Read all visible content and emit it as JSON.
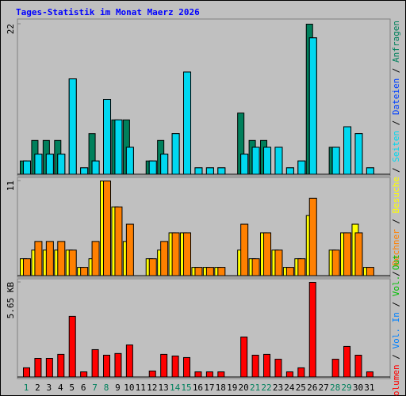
{
  "title": "Tages-Statistik im Monat Maerz 2026",
  "legend_separator": " / ",
  "chart_data": [
    {
      "type": "bar",
      "ylim": [
        0,
        22
      ],
      "yticks": [
        22
      ],
      "series": [
        {
          "name": "Anfragen",
          "color": "#00805c",
          "values": [
            2,
            5,
            5,
            5,
            0,
            0,
            6,
            0,
            8,
            8,
            0,
            2,
            5,
            0,
            0,
            0,
            0,
            0,
            0,
            9,
            5,
            5,
            0,
            0,
            0,
            22,
            0,
            4,
            0,
            0,
            0
          ]
        },
        {
          "name": "Dateien",
          "color": "#0040ff",
          "values": [
            2,
            3,
            3,
            3,
            14,
            1,
            2,
            11,
            8,
            4,
            0,
            2,
            3,
            6,
            15,
            1,
            1,
            1,
            0,
            3,
            4,
            4,
            4,
            1,
            2,
            20,
            0,
            4,
            7,
            6,
            1
          ]
        },
        {
          "name": "Seiten",
          "color": "#00d8f0",
          "values": [
            2,
            3,
            3,
            3,
            14,
            1,
            2,
            11,
            8,
            4,
            0,
            2,
            3,
            6,
            15,
            1,
            1,
            1,
            0,
            3,
            4,
            4,
            4,
            1,
            2,
            20,
            0,
            4,
            7,
            6,
            1
          ]
        }
      ]
    },
    {
      "type": "bar",
      "ylim": [
        0,
        11
      ],
      "yticks": [
        11
      ],
      "series": [
        {
          "name": "Besuche",
          "color": "#ffff00",
          "values": [
            2,
            3,
            3,
            3,
            3,
            1,
            2,
            11,
            8,
            4,
            0,
            2,
            3,
            5,
            5,
            1,
            1,
            1,
            0,
            3,
            2,
            5,
            3,
            1,
            2,
            7,
            0,
            3,
            5,
            6,
            1
          ]
        },
        {
          "name": "Rechner",
          "color": "#ff8000",
          "values": [
            2,
            4,
            4,
            4,
            3,
            1,
            4,
            11,
            8,
            6,
            0,
            2,
            4,
            5,
            5,
            1,
            1,
            1,
            0,
            6,
            2,
            5,
            3,
            1,
            2,
            9,
            0,
            3,
            5,
            5,
            1
          ]
        }
      ]
    },
    {
      "type": "bar",
      "ylim": [
        0,
        5.65
      ],
      "yticks": [
        {
          "value": 5.65,
          "label": "5.65 KB"
        }
      ],
      "categories": [
        "1",
        "2",
        "3",
        "4",
        "5",
        "6",
        "7",
        "8",
        "9",
        "10",
        "11",
        "12",
        "13",
        "14",
        "15",
        "16",
        "17",
        "18",
        "19",
        "20",
        "21",
        "22",
        "23",
        "24",
        "25",
        "26",
        "27",
        "28",
        "29",
        "30",
        "31"
      ],
      "category_colors": [
        "#00805c",
        "#000000",
        "#000000",
        "#000000",
        "#000000",
        "#000000",
        "#00805c",
        "#00805c",
        "#000000",
        "#000000",
        "#000000",
        "#000000",
        "#000000",
        "#00805c",
        "#00805c",
        "#000000",
        "#000000",
        "#000000",
        "#000000",
        "#000000",
        "#00805c",
        "#00805c",
        "#000000",
        "#000000",
        "#000000",
        "#000000",
        "#000000",
        "#00805c",
        "#00805c",
        "#000000",
        "#000000"
      ],
      "series": [
        {
          "name": "Volumen",
          "color": "#ff0000",
          "values": [
            0.57,
            1.13,
            1.13,
            1.37,
            3.63,
            0.33,
            1.65,
            1.32,
            1.42,
            1.93,
            0,
            0.38,
            1.37,
            1.27,
            1.18,
            0.33,
            0.33,
            0.33,
            0,
            2.4,
            1.32,
            1.37,
            1.08,
            0.33,
            0.57,
            5.65,
            0,
            1.08,
            1.84,
            1.32,
            0.33
          ]
        },
        {
          "name": "Vol. In",
          "color": "#0080ff",
          "values": [
            0,
            0,
            0,
            0,
            0,
            0,
            0,
            0,
            0,
            0,
            0,
            0,
            0,
            0,
            0,
            0,
            0,
            0,
            0,
            0,
            0,
            0,
            0,
            0,
            0,
            0,
            0,
            0,
            0,
            0,
            0
          ]
        },
        {
          "name": "Vol. Out",
          "color": "#00c000",
          "values": [
            0,
            0,
            0,
            0,
            0,
            0,
            0,
            0,
            0,
            0,
            0,
            0,
            0,
            0,
            0,
            0,
            0,
            0,
            0,
            0,
            0,
            0,
            0,
            0,
            0,
            0,
            0,
            0,
            0,
            0,
            0
          ]
        }
      ]
    }
  ]
}
